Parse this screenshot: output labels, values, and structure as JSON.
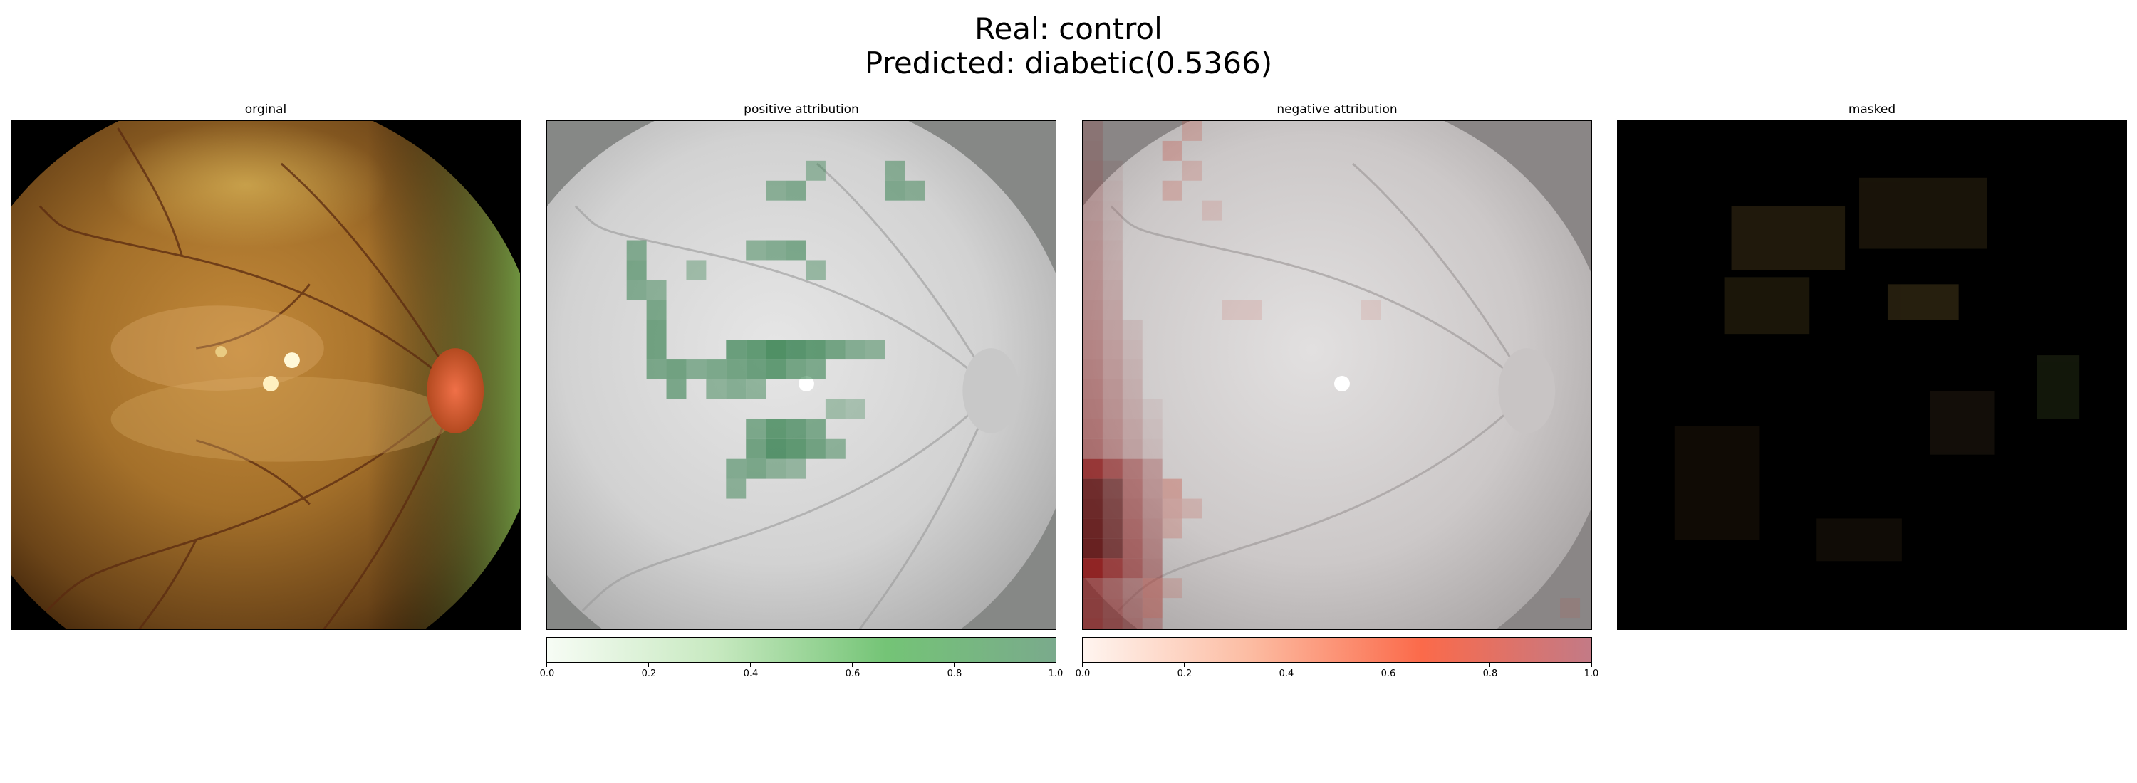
{
  "figure": {
    "title_line_1": "Real: control",
    "title_line_2": "Predicted: diabetic(0.5366)"
  },
  "panels": [
    {
      "title": "orginal",
      "image": "retinal-fundus-photo"
    },
    {
      "title": "positive attribution",
      "image": "grayscale-fundus-with-green-attribution-overlay"
    },
    {
      "title": "negative attribution",
      "image": "grayscale-fundus-with-red-attribution-overlay"
    },
    {
      "title": "masked",
      "image": "masked-fundus-dark"
    }
  ],
  "colorbars": [
    {
      "colormap": "Greens",
      "ticks": [
        "0.0",
        "0.2",
        "0.4",
        "0.6",
        "0.8",
        "1.0"
      ],
      "range": [
        0.0,
        1.0
      ]
    },
    {
      "colormap": "Reds",
      "ticks": [
        "0.0",
        "0.2",
        "0.4",
        "0.6",
        "0.8",
        "1.0"
      ],
      "range": [
        0.0,
        1.0
      ]
    }
  ],
  "colors": {
    "green_low": "#f7fcf5",
    "green_high": "#7aaa8c",
    "red_low": "#fff5f0",
    "red_high": "#c37a86"
  }
}
